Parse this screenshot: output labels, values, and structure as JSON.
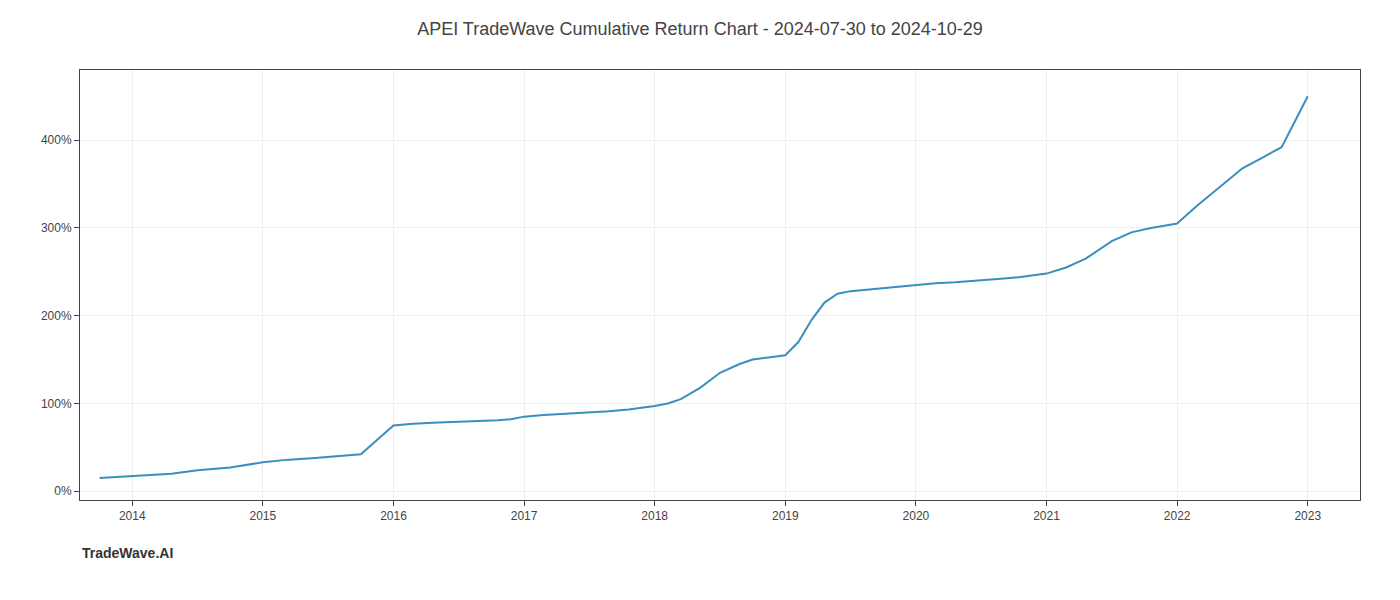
{
  "chart_data": {
    "type": "line",
    "title": "APEI TradeWave Cumulative Return Chart - 2024-07-30 to 2024-10-29",
    "annotations": [
      "TradeWave.AI"
    ],
    "x": [
      2013.75,
      2014.0,
      2014.15,
      2014.3,
      2014.5,
      2014.75,
      2015.0,
      2015.2,
      2015.4,
      2015.6,
      2015.75,
      2016.0,
      2016.15,
      2016.3,
      2016.5,
      2016.65,
      2016.8,
      2016.9,
      2017.0,
      2017.15,
      2017.3,
      2017.5,
      2017.65,
      2017.8,
      2018.0,
      2018.1,
      2018.2,
      2018.35,
      2018.5,
      2018.65,
      2018.75,
      2018.9,
      2019.0,
      2019.1,
      2019.2,
      2019.3,
      2019.4,
      2019.5,
      2019.65,
      2019.8,
      2020.0,
      2020.15,
      2020.3,
      2020.5,
      2020.65,
      2020.8,
      2021.0,
      2021.15,
      2021.3,
      2021.5,
      2021.65,
      2021.8,
      2022.0,
      2022.15,
      2022.35,
      2022.5,
      2022.65,
      2022.8,
      2023.0
    ],
    "values": [
      15,
      17,
      18,
      20,
      24,
      27,
      33,
      36,
      38,
      40,
      42,
      75,
      77,
      78,
      79,
      80,
      81,
      82,
      85,
      87,
      88,
      90,
      91,
      93,
      97,
      100,
      105,
      118,
      135,
      145,
      150,
      153,
      155,
      170,
      195,
      215,
      225,
      228,
      230,
      232,
      235,
      237,
      238,
      240,
      242,
      244,
      248,
      255,
      265,
      285,
      295,
      300,
      305,
      325,
      350,
      368,
      380,
      392,
      450
    ],
    "color": "#3a8fbf",
    "xlim": [
      2013.6,
      2023.4
    ],
    "xticks": [
      2014,
      2015,
      2016,
      2017,
      2018,
      2019,
      2020,
      2021,
      2022,
      2023
    ],
    "ylim": [
      -10,
      480
    ],
    "yticks": [
      {
        "value": 0,
        "label": "0%"
      },
      {
        "value": 100,
        "label": "100%"
      },
      {
        "value": 200,
        "label": "200%"
      },
      {
        "value": 300,
        "label": "300%"
      },
      {
        "value": 400,
        "label": "400%"
      }
    ],
    "grid": true
  }
}
